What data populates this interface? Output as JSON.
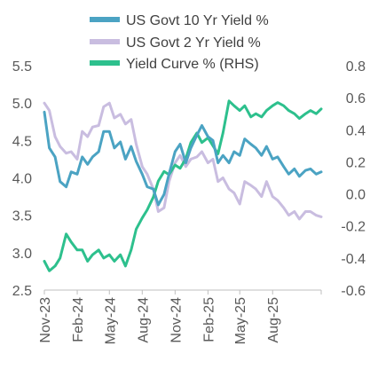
{
  "chart_data": {
    "type": "line",
    "title": "",
    "xlabel": "",
    "ylabel": "",
    "legend_position": "top",
    "grid": false,
    "y_left": {
      "lim": [
        2.5,
        5.5
      ],
      "ticks": [
        "5.5",
        "5.0",
        "4.5",
        "4.0",
        "3.5",
        "3.0",
        "2.5"
      ]
    },
    "y_right": {
      "lim": [
        -0.6,
        0.8
      ],
      "ticks": [
        "0.8",
        "0.6",
        "0.4",
        "0.2",
        "0.0",
        "-0.2",
        "-0.4",
        "-0.6"
      ]
    },
    "x_range": [
      "2023-11-01",
      "2025-12-15"
    ],
    "x_ticks": [
      "Nov-23",
      "Feb-24",
      "May-24",
      "Aug-24",
      "Nov-24",
      "Feb-25",
      "May-25",
      "Aug-25"
    ],
    "series": [
      {
        "name": "US Govt 10 Yr Yield %",
        "axis": "left",
        "color": "#4BA3C3",
        "points": [
          [
            "2023-11-01",
            4.88
          ],
          [
            "2023-11-15",
            4.4
          ],
          [
            "2023-12-01",
            4.28
          ],
          [
            "2023-12-15",
            3.95
          ],
          [
            "2024-01-01",
            3.88
          ],
          [
            "2024-01-15",
            4.08
          ],
          [
            "2024-02-01",
            4.05
          ],
          [
            "2024-02-15",
            4.28
          ],
          [
            "2024-03-01",
            4.18
          ],
          [
            "2024-03-15",
            4.28
          ],
          [
            "2024-04-01",
            4.35
          ],
          [
            "2024-04-15",
            4.62
          ],
          [
            "2024-05-01",
            4.62
          ],
          [
            "2024-05-15",
            4.4
          ],
          [
            "2024-06-01",
            4.48
          ],
          [
            "2024-06-15",
            4.25
          ],
          [
            "2024-07-01",
            4.42
          ],
          [
            "2024-07-15",
            4.22
          ],
          [
            "2024-08-01",
            4.05
          ],
          [
            "2024-08-15",
            3.88
          ],
          [
            "2024-09-01",
            3.85
          ],
          [
            "2024-09-15",
            3.64
          ],
          [
            "2024-10-01",
            3.78
          ],
          [
            "2024-10-15",
            4.05
          ],
          [
            "2024-11-01",
            4.35
          ],
          [
            "2024-11-15",
            4.45
          ],
          [
            "2024-12-01",
            4.2
          ],
          [
            "2024-12-15",
            4.4
          ],
          [
            "2025-01-01",
            4.57
          ],
          [
            "2025-01-15",
            4.7
          ],
          [
            "2025-02-01",
            4.55
          ],
          [
            "2025-02-15",
            4.5
          ],
          [
            "2025-03-01",
            4.2
          ],
          [
            "2025-03-15",
            4.3
          ],
          [
            "2025-04-01",
            4.2
          ],
          [
            "2025-04-15",
            4.35
          ],
          [
            "2025-05-01",
            4.3
          ],
          [
            "2025-05-15",
            4.52
          ],
          [
            "2025-06-01",
            4.45
          ],
          [
            "2025-06-15",
            4.4
          ],
          [
            "2025-07-01",
            4.3
          ],
          [
            "2025-07-15",
            4.42
          ],
          [
            "2025-08-01",
            4.25
          ],
          [
            "2025-08-15",
            4.28
          ],
          [
            "2025-09-01",
            4.15
          ],
          [
            "2025-09-15",
            4.05
          ],
          [
            "2025-10-01",
            4.12
          ],
          [
            "2025-10-15",
            4.02
          ],
          [
            "2025-11-01",
            4.1
          ],
          [
            "2025-11-15",
            4.12
          ],
          [
            "2025-12-01",
            4.05
          ],
          [
            "2025-12-15",
            4.08
          ]
        ]
      },
      {
        "name": "US Govt 2 Yr Yield  %",
        "axis": "left",
        "color": "#C9BDE0",
        "points": [
          [
            "2023-11-01",
            5.0
          ],
          [
            "2023-11-15",
            4.9
          ],
          [
            "2023-12-01",
            4.55
          ],
          [
            "2023-12-15",
            4.42
          ],
          [
            "2024-01-01",
            4.33
          ],
          [
            "2024-01-15",
            4.35
          ],
          [
            "2024-02-01",
            4.25
          ],
          [
            "2024-02-15",
            4.62
          ],
          [
            "2024-03-01",
            4.55
          ],
          [
            "2024-03-15",
            4.68
          ],
          [
            "2024-04-01",
            4.7
          ],
          [
            "2024-04-15",
            4.95
          ],
          [
            "2024-05-01",
            5.0
          ],
          [
            "2024-05-15",
            4.8
          ],
          [
            "2024-06-01",
            4.85
          ],
          [
            "2024-06-15",
            4.72
          ],
          [
            "2024-07-01",
            4.78
          ],
          [
            "2024-07-15",
            4.45
          ],
          [
            "2024-08-01",
            4.15
          ],
          [
            "2024-08-15",
            4.05
          ],
          [
            "2024-09-01",
            3.85
          ],
          [
            "2024-09-15",
            3.55
          ],
          [
            "2024-10-01",
            3.6
          ],
          [
            "2024-10-15",
            3.95
          ],
          [
            "2024-11-01",
            4.2
          ],
          [
            "2024-11-15",
            4.3
          ],
          [
            "2024-12-01",
            4.15
          ],
          [
            "2024-12-15",
            4.25
          ],
          [
            "2025-01-01",
            4.28
          ],
          [
            "2025-01-15",
            4.35
          ],
          [
            "2025-02-01",
            4.2
          ],
          [
            "2025-02-15",
            4.25
          ],
          [
            "2025-03-01",
            3.95
          ],
          [
            "2025-03-15",
            4.0
          ],
          [
            "2025-04-01",
            3.85
          ],
          [
            "2025-04-15",
            3.8
          ],
          [
            "2025-05-01",
            3.65
          ],
          [
            "2025-05-15",
            3.95
          ],
          [
            "2025-06-01",
            3.9
          ],
          [
            "2025-06-15",
            3.85
          ],
          [
            "2025-07-01",
            3.75
          ],
          [
            "2025-07-15",
            3.95
          ],
          [
            "2025-08-01",
            3.75
          ],
          [
            "2025-08-15",
            3.7
          ],
          [
            "2025-09-01",
            3.6
          ],
          [
            "2025-09-15",
            3.5
          ],
          [
            "2025-10-01",
            3.55
          ],
          [
            "2025-10-15",
            3.45
          ],
          [
            "2025-11-01",
            3.55
          ],
          [
            "2025-11-15",
            3.55
          ],
          [
            "2025-12-01",
            3.5
          ],
          [
            "2025-12-15",
            3.48
          ]
        ]
      },
      {
        "name": "Yield Curve % (RHS)",
        "axis": "right",
        "color": "#2DC08D",
        "points": [
          [
            "2023-11-01",
            -0.42
          ],
          [
            "2023-11-15",
            -0.48
          ],
          [
            "2023-12-01",
            -0.45
          ],
          [
            "2023-12-15",
            -0.4
          ],
          [
            "2024-01-01",
            -0.25
          ],
          [
            "2024-01-15",
            -0.3
          ],
          [
            "2024-02-01",
            -0.35
          ],
          [
            "2024-02-15",
            -0.35
          ],
          [
            "2024-03-01",
            -0.42
          ],
          [
            "2024-03-15",
            -0.38
          ],
          [
            "2024-04-01",
            -0.35
          ],
          [
            "2024-04-15",
            -0.4
          ],
          [
            "2024-05-01",
            -0.38
          ],
          [
            "2024-05-15",
            -0.42
          ],
          [
            "2024-06-01",
            -0.38
          ],
          [
            "2024-06-15",
            -0.45
          ],
          [
            "2024-07-01",
            -0.35
          ],
          [
            "2024-07-15",
            -0.22
          ],
          [
            "2024-08-01",
            -0.15
          ],
          [
            "2024-08-15",
            -0.1
          ],
          [
            "2024-09-01",
            -0.02
          ],
          [
            "2024-09-15",
            0.08
          ],
          [
            "2024-10-01",
            0.14
          ],
          [
            "2024-10-15",
            0.12
          ],
          [
            "2024-11-01",
            0.18
          ],
          [
            "2024-11-15",
            0.16
          ],
          [
            "2024-12-01",
            0.22
          ],
          [
            "2024-12-15",
            0.32
          ],
          [
            "2025-01-01",
            0.38
          ],
          [
            "2025-01-15",
            0.32
          ],
          [
            "2025-02-01",
            0.35
          ],
          [
            "2025-02-15",
            0.3
          ],
          [
            "2025-03-01",
            0.25
          ],
          [
            "2025-03-15",
            0.38
          ],
          [
            "2025-04-01",
            0.58
          ],
          [
            "2025-04-15",
            0.55
          ],
          [
            "2025-05-01",
            0.52
          ],
          [
            "2025-05-15",
            0.55
          ],
          [
            "2025-06-01",
            0.48
          ],
          [
            "2025-06-15",
            0.5
          ],
          [
            "2025-07-01",
            0.48
          ],
          [
            "2025-07-15",
            0.52
          ],
          [
            "2025-08-01",
            0.55
          ],
          [
            "2025-08-15",
            0.57
          ],
          [
            "2025-09-01",
            0.55
          ],
          [
            "2025-09-15",
            0.52
          ],
          [
            "2025-10-01",
            0.5
          ],
          [
            "2025-10-15",
            0.47
          ],
          [
            "2025-11-01",
            0.5
          ],
          [
            "2025-11-15",
            0.52
          ],
          [
            "2025-12-01",
            0.5
          ],
          [
            "2025-12-15",
            0.53
          ]
        ]
      }
    ]
  }
}
